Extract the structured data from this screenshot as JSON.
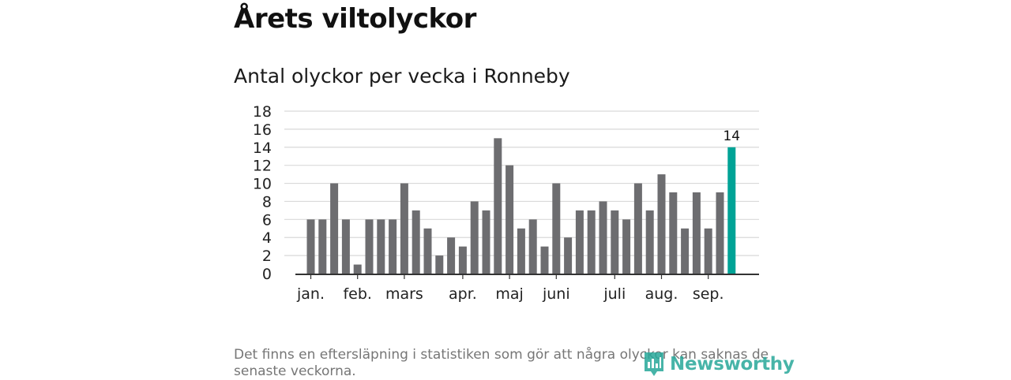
{
  "page": {
    "title": "Årets viltolyckor",
    "footnote": "Det finns en eftersläpning i statistiken som gör att några olyckor kan saknas de senaste veckorna."
  },
  "logo": {
    "text": "Newsworthy",
    "icon": "newsworthy-logo-icon",
    "color": "#27a89a"
  },
  "chart_data": {
    "type": "bar",
    "subtitle": "Antal olyckor per vecka i Ronneby",
    "values": [
      6,
      6,
      10,
      6,
      1,
      6,
      6,
      6,
      10,
      7,
      5,
      2,
      4,
      3,
      8,
      7,
      15,
      12,
      5,
      6,
      3,
      10,
      4,
      7,
      7,
      8,
      7,
      6,
      10,
      7,
      11,
      9,
      5,
      9,
      5,
      9,
      14
    ],
    "highlight_index": 36,
    "highlight_label": "14",
    "month_labels": [
      {
        "label": "jan.",
        "week_index": 0
      },
      {
        "label": "feb.",
        "week_index": 4
      },
      {
        "label": "mars",
        "week_index": 8
      },
      {
        "label": "apr.",
        "week_index": 13
      },
      {
        "label": "maj",
        "week_index": 17
      },
      {
        "label": "juni",
        "week_index": 21
      },
      {
        "label": "juli",
        "week_index": 26
      },
      {
        "label": "aug.",
        "week_index": 30
      },
      {
        "label": "sep.",
        "week_index": 34
      }
    ],
    "y_ticks": [
      "0",
      "2",
      "4",
      "6",
      "8",
      "10",
      "12",
      "14",
      "16",
      "18"
    ],
    "ylim": [
      0,
      18
    ],
    "grid": true,
    "colors": {
      "bar": "#6d6d70",
      "highlight": "#00a396",
      "grid": "#d9d9d9",
      "axis": "#333333"
    }
  }
}
